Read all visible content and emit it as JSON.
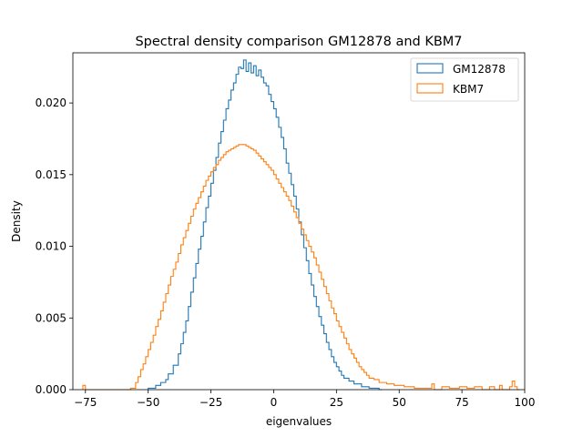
{
  "chart_data": {
    "type": "histogram",
    "title": "Spectral density comparison GM12878 and KBM7",
    "xlabel": "eigenvalues",
    "ylabel": "Density",
    "xlim": [
      -80,
      100
    ],
    "ylim": [
      0,
      0.0235
    ],
    "xticks": [
      -75,
      -50,
      -25,
      0,
      25,
      50,
      75,
      100
    ],
    "xtick_labels": [
      "−75",
      "−50",
      "−25",
      "0",
      "25",
      "50",
      "75",
      "100"
    ],
    "yticks": [
      0,
      0.005,
      0.01,
      0.015,
      0.02
    ],
    "ytick_labels": [
      "0.000",
      "0.005",
      "0.010",
      "0.015",
      "0.020"
    ],
    "grid": false,
    "legend_position": "top-right",
    "histtype": "step",
    "series": [
      {
        "name": "GM12878",
        "color": "#1f77b4",
        "bins": [
          [
            -50,
            0.0001
          ],
          [
            -47,
            0.0003
          ],
          [
            -45,
            0.0005
          ],
          [
            -43,
            0.0007
          ],
          [
            -42,
            0.0011
          ],
          [
            -40,
            0.0017
          ],
          [
            -38,
            0.0025
          ],
          [
            -37,
            0.0032
          ],
          [
            -36,
            0.004
          ],
          [
            -35,
            0.0048
          ],
          [
            -34,
            0.0058
          ],
          [
            -33,
            0.0068
          ],
          [
            -32,
            0.0078
          ],
          [
            -31,
            0.0088
          ],
          [
            -30,
            0.0098
          ],
          [
            -29,
            0.0107
          ],
          [
            -28,
            0.0117
          ],
          [
            -27,
            0.0127
          ],
          [
            -26,
            0.0135
          ],
          [
            -25,
            0.0144
          ],
          [
            -24,
            0.0153
          ],
          [
            -23,
            0.0162
          ],
          [
            -22,
            0.0172
          ],
          [
            -21,
            0.018
          ],
          [
            -20,
            0.0188
          ],
          [
            -19,
            0.0196
          ],
          [
            -18,
            0.0202
          ],
          [
            -17,
            0.0209
          ],
          [
            -16,
            0.0214
          ],
          [
            -15,
            0.022
          ],
          [
            -14,
            0.0225
          ],
          [
            -13,
            0.0224
          ],
          [
            -12,
            0.023
          ],
          [
            -11,
            0.0222
          ],
          [
            -10,
            0.0228
          ],
          [
            -9,
            0.0221
          ],
          [
            -8,
            0.0226
          ],
          [
            -7,
            0.0219
          ],
          [
            -6,
            0.0223
          ],
          [
            -5,
            0.0218
          ],
          [
            -4,
            0.0214
          ],
          [
            -3,
            0.0212
          ],
          [
            -2,
            0.0206
          ],
          [
            -1,
            0.0201
          ],
          [
            0,
            0.0196
          ],
          [
            1,
            0.019
          ],
          [
            2,
            0.0183
          ],
          [
            3,
            0.0176
          ],
          [
            4,
            0.0168
          ],
          [
            5,
            0.0158
          ],
          [
            6,
            0.0151
          ],
          [
            7,
            0.0143
          ],
          [
            8,
            0.0135
          ],
          [
            9,
            0.0126
          ],
          [
            10,
            0.0117
          ],
          [
            11,
            0.0108
          ],
          [
            12,
            0.0099
          ],
          [
            13,
            0.009
          ],
          [
            14,
            0.0081
          ],
          [
            15,
            0.0073
          ],
          [
            16,
            0.0065
          ],
          [
            17,
            0.0058
          ],
          [
            18,
            0.0051
          ],
          [
            19,
            0.0045
          ],
          [
            20,
            0.0039
          ],
          [
            21,
            0.0033
          ],
          [
            22,
            0.0028
          ],
          [
            23,
            0.0023
          ],
          [
            24,
            0.0019
          ],
          [
            25,
            0.0016
          ],
          [
            26,
            0.0013
          ],
          [
            27,
            0.001
          ],
          [
            28,
            0.0008
          ],
          [
            30,
            0.0006
          ],
          [
            32,
            0.0004
          ],
          [
            35,
            0.0002
          ],
          [
            38,
            0.0001
          ],
          [
            42,
            0.0
          ]
        ]
      },
      {
        "name": "KBM7",
        "color": "#ff7f0e",
        "bins": [
          [
            -76,
            0.0003
          ],
          [
            -75,
            0.0
          ],
          [
            -57,
            0.0001
          ],
          [
            -55,
            0.0005
          ],
          [
            -54,
            0.0009
          ],
          [
            -53,
            0.0014
          ],
          [
            -52,
            0.0018
          ],
          [
            -51,
            0.0023
          ],
          [
            -50,
            0.0028
          ],
          [
            -49,
            0.0033
          ],
          [
            -48,
            0.0038
          ],
          [
            -47,
            0.0044
          ],
          [
            -46,
            0.0049
          ],
          [
            -45,
            0.0055
          ],
          [
            -44,
            0.0061
          ],
          [
            -43,
            0.0067
          ],
          [
            -42,
            0.0073
          ],
          [
            -41,
            0.0079
          ],
          [
            -40,
            0.0084
          ],
          [
            -39,
            0.0089
          ],
          [
            -38,
            0.0095
          ],
          [
            -37,
            0.0101
          ],
          [
            -36,
            0.0106
          ],
          [
            -35,
            0.0111
          ],
          [
            -34,
            0.0116
          ],
          [
            -33,
            0.0121
          ],
          [
            -32,
            0.0126
          ],
          [
            -31,
            0.013
          ],
          [
            -30,
            0.0134
          ],
          [
            -29,
            0.0138
          ],
          [
            -28,
            0.0142
          ],
          [
            -27,
            0.0146
          ],
          [
            -26,
            0.0149
          ],
          [
            -25,
            0.0152
          ],
          [
            -24,
            0.0155
          ],
          [
            -23,
            0.0157
          ],
          [
            -22,
            0.016
          ],
          [
            -21,
            0.0162
          ],
          [
            -20,
            0.0164
          ],
          [
            -19,
            0.0166
          ],
          [
            -18,
            0.0167
          ],
          [
            -17,
            0.0168
          ],
          [
            -16,
            0.0169
          ],
          [
            -15,
            0.017
          ],
          [
            -14,
            0.0171
          ],
          [
            -13,
            0.0171
          ],
          [
            -12,
            0.0171
          ],
          [
            -11,
            0.017
          ],
          [
            -10,
            0.0169
          ],
          [
            -9,
            0.0168
          ],
          [
            -8,
            0.0167
          ],
          [
            -7,
            0.0165
          ],
          [
            -6,
            0.0163
          ],
          [
            -5,
            0.0161
          ],
          [
            -4,
            0.0159
          ],
          [
            -3,
            0.0157
          ],
          [
            -2,
            0.0155
          ],
          [
            -1,
            0.0153
          ],
          [
            0,
            0.015
          ],
          [
            1,
            0.0147
          ],
          [
            2,
            0.0144
          ],
          [
            3,
            0.0141
          ],
          [
            4,
            0.0138
          ],
          [
            5,
            0.0135
          ],
          [
            6,
            0.0132
          ],
          [
            7,
            0.0128
          ],
          [
            8,
            0.0124
          ],
          [
            9,
            0.012
          ],
          [
            10,
            0.0116
          ],
          [
            11,
            0.0112
          ],
          [
            12,
            0.0108
          ],
          [
            13,
            0.0104
          ],
          [
            14,
            0.01
          ],
          [
            15,
            0.0096
          ],
          [
            16,
            0.0092
          ],
          [
            17,
            0.0087
          ],
          [
            18,
            0.0082
          ],
          [
            19,
            0.0077
          ],
          [
            20,
            0.0072
          ],
          [
            21,
            0.0067
          ],
          [
            22,
            0.0062
          ],
          [
            23,
            0.0057
          ],
          [
            24,
            0.0053
          ],
          [
            25,
            0.0048
          ],
          [
            26,
            0.0044
          ],
          [
            27,
            0.004
          ],
          [
            28,
            0.0036
          ],
          [
            29,
            0.0032
          ],
          [
            30,
            0.0028
          ],
          [
            31,
            0.0025
          ],
          [
            32,
            0.0022
          ],
          [
            33,
            0.0019
          ],
          [
            34,
            0.0016
          ],
          [
            35,
            0.0014
          ],
          [
            36,
            0.0012
          ],
          [
            37,
            0.001
          ],
          [
            38,
            0.0008
          ],
          [
            40,
            0.0007
          ],
          [
            42,
            0.0005
          ],
          [
            45,
            0.0004
          ],
          [
            48,
            0.0003
          ],
          [
            52,
            0.0002
          ],
          [
            56,
            0.0001
          ],
          [
            60,
            0.0001
          ],
          [
            63,
            0.0004
          ],
          [
            64,
            0.0
          ],
          [
            67,
            0.0002
          ],
          [
            70,
            0.0001
          ],
          [
            74,
            0.0002
          ],
          [
            77,
            0.0001
          ],
          [
            80,
            0.0002
          ],
          [
            83,
            0.0
          ],
          [
            86,
            0.0002
          ],
          [
            88,
            0.0
          ],
          [
            90,
            0.0003
          ],
          [
            91,
            0.0
          ],
          [
            94,
            0.0002
          ],
          [
            95,
            0.0006
          ],
          [
            96,
            0.0002
          ],
          [
            97,
            0.0
          ]
        ]
      }
    ]
  }
}
